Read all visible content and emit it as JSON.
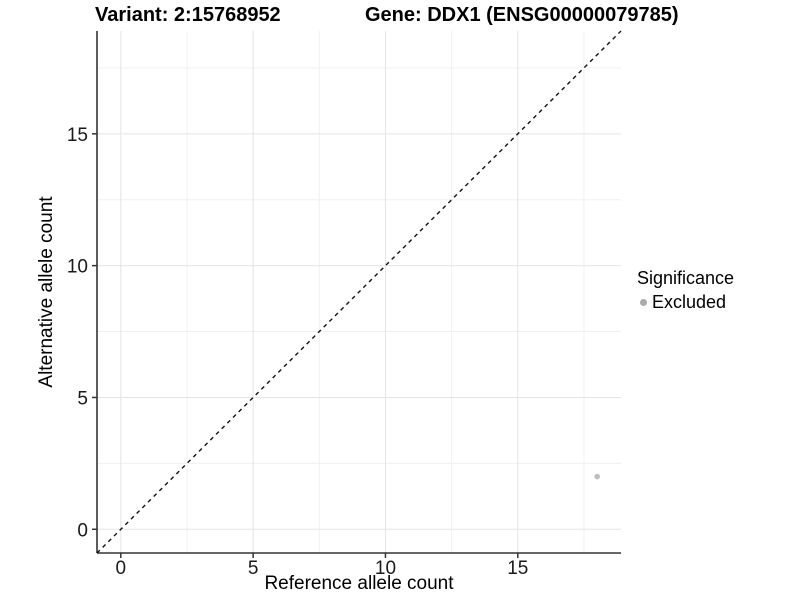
{
  "header": {
    "variant_title": "Variant: 2:15768952",
    "gene_title": "Gene: DDX1 (ENSG00000079785)"
  },
  "axes": {
    "x_label": "Reference allele count",
    "y_label": "Alternative allele count"
  },
  "legend": {
    "title": "Significance",
    "items": [
      {
        "label": "Excluded",
        "color": "#ababab"
      }
    ]
  },
  "chart_data": {
    "type": "scatter",
    "title": "Variant: 2:15768952 | Gene: DDX1 (ENSG00000079785)",
    "xlabel": "Reference allele count",
    "ylabel": "Alternative allele count",
    "xlim": [
      -0.9,
      18.9
    ],
    "ylim": [
      -0.9,
      18.9
    ],
    "x_ticks": [
      0,
      5,
      10,
      15
    ],
    "y_ticks": [
      0,
      5,
      10,
      15
    ],
    "minor_x": [
      2.5,
      7.5,
      12.5,
      17.5
    ],
    "minor_y": [
      2.5,
      7.5,
      12.5,
      17.5
    ],
    "grid": true,
    "legend_position": "right",
    "series": [
      {
        "name": "Excluded",
        "color": "#bdbdbd",
        "point_radius": 2.8,
        "points": [
          {
            "x": 18,
            "y": 2
          }
        ]
      }
    ],
    "reference_line": {
      "kind": "identity",
      "from": [
        -0.9,
        -0.9
      ],
      "to": [
        18.9,
        18.9
      ],
      "style": "dashed",
      "color": "#111111"
    },
    "style": {
      "grid_major_color": "#e4e4e4",
      "grid_minor_color": "#f0f0f0",
      "axis_line_color": "#333333",
      "tick_color": "#333333",
      "tick_label_color": "#1a1a1a",
      "tick_font_size": 19
    }
  }
}
